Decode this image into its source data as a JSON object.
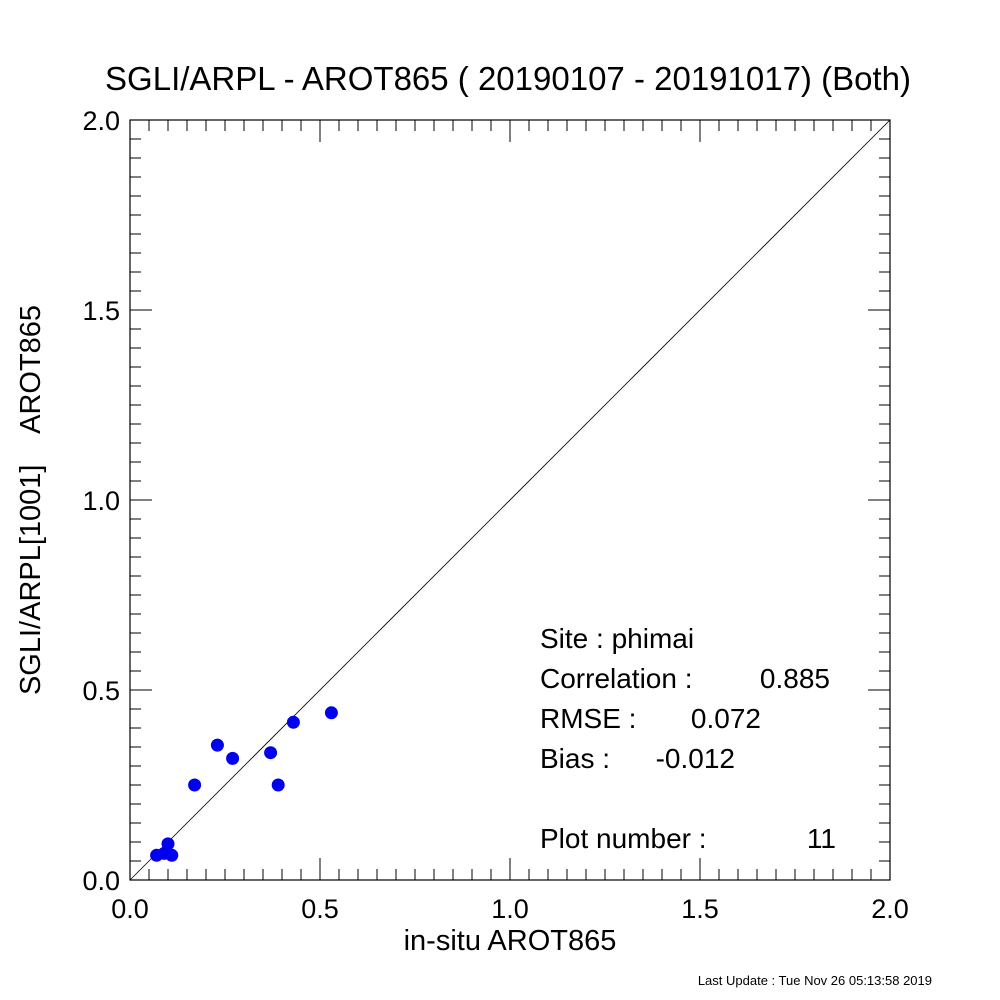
{
  "chart_data": {
    "type": "scatter",
    "title": "SGLI/ARPL - AROT865 ( 20190107 - 20191017) (Both)",
    "xlabel": "in-situ AROT865",
    "ylabel": "SGLI/ARPL[1001]    AROT865",
    "xlim": [
      0.0,
      2.0
    ],
    "ylim": [
      0.0,
      2.0
    ],
    "x_ticks": [
      "0.0",
      "0.5",
      "1.0",
      "1.5",
      "2.0"
    ],
    "y_ticks": [
      "0.0",
      "0.5",
      "1.0",
      "1.5",
      "2.0"
    ],
    "reference_line": "1:1",
    "grid": false,
    "point_color": "#0000ee",
    "series": [
      {
        "x": [
          0.07,
          0.09,
          0.1,
          0.11,
          0.17,
          0.23,
          0.27,
          0.37,
          0.39,
          0.43,
          0.53
        ],
        "y": [
          0.065,
          0.07,
          0.095,
          0.065,
          0.25,
          0.355,
          0.32,
          0.335,
          0.25,
          0.415,
          0.44
        ]
      }
    ],
    "annotations": {
      "site": "Site : phimai",
      "correlation_label": "Correlation :",
      "correlation_value": "0.885",
      "rmse_label": "RMSE :",
      "rmse_value": "0.072",
      "bias_label": "Bias :",
      "bias_value": "-0.012",
      "plot_number_label": "Plot number :",
      "plot_number_value": "11"
    }
  },
  "footer": "Last Update : Tue Nov 26 05:13:58 2019"
}
